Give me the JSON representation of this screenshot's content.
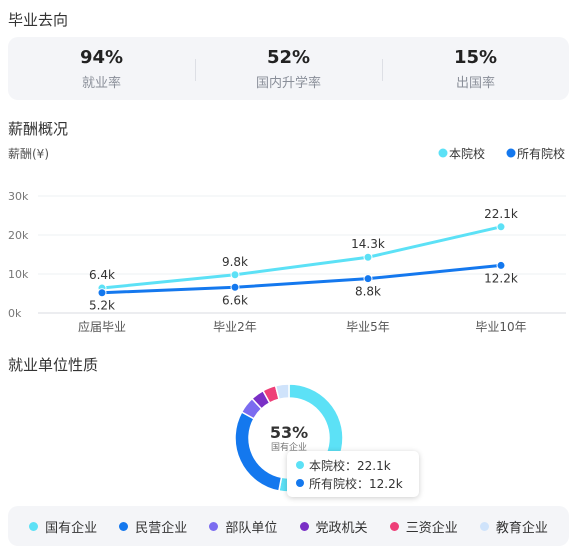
{
  "employment": {
    "title": "毕业去向",
    "stats": [
      {
        "value": "94%",
        "label": "就业率"
      },
      {
        "value": "52%",
        "label": "国内升学率"
      },
      {
        "value": "15%",
        "label": "出国率"
      }
    ]
  },
  "salary": {
    "title": "薪酬概况",
    "unit_label": "薪酬(¥)",
    "legend": [
      {
        "name": "本院校",
        "color": "#5ce1f6"
      },
      {
        "name": "所有院校",
        "color": "#1478ee"
      }
    ]
  },
  "chart_data": [
    {
      "type": "line",
      "ylabel": "薪酬(¥)",
      "categories": [
        "应届毕业",
        "毕业2年",
        "毕业5年",
        "毕业10年"
      ],
      "y_ticks": [
        "0k",
        "10k",
        "20k",
        "30k"
      ],
      "ylim": [
        0,
        30
      ],
      "series": [
        {
          "name": "本院校",
          "color": "#5ce1f6",
          "values": [
            6.4,
            9.8,
            14.3,
            22.1
          ],
          "labels": [
            "6.4k",
            "9.8k",
            "14.3k",
            "22.1k"
          ]
        },
        {
          "name": "所有院校",
          "color": "#1478ee",
          "values": [
            5.2,
            6.6,
            8.8,
            12.2
          ],
          "labels": [
            "5.2k",
            "6.6k",
            "8.8k",
            "12.2k"
          ]
        }
      ],
      "legend_position": "top-right",
      "grid": true
    },
    {
      "type": "pie",
      "title": "就业单位性质",
      "center_value": "53%",
      "center_label": "国有企业",
      "slices": [
        {
          "name": "国有企业",
          "value": 53,
          "color": "#5ce1f6"
        },
        {
          "name": "民营企业",
          "value": 30,
          "color": "#1478ee"
        },
        {
          "name": "部队单位",
          "value": 5,
          "color": "#7b6cf0"
        },
        {
          "name": "党政机关",
          "value": 4,
          "color": "#7a2fc6"
        },
        {
          "name": "三资企业",
          "value": 4,
          "color": "#ee3f78"
        },
        {
          "name": "教育企业",
          "value": 4,
          "color": "#cfe3fb"
        }
      ]
    }
  ],
  "unit_type": {
    "title": "就业单位性质"
  },
  "tooltip": {
    "rows": [
      {
        "text": "本院校：22.1k",
        "color": "#5ce1f6"
      },
      {
        "text": "所有院校：12.2k",
        "color": "#1478ee"
      }
    ]
  }
}
